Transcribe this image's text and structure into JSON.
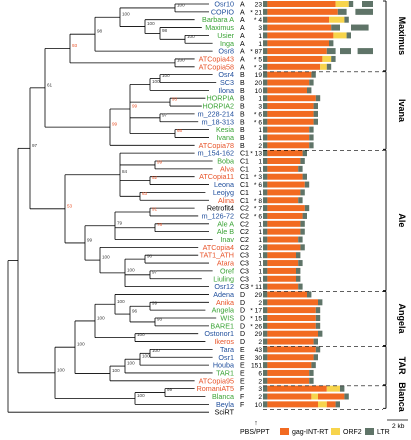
{
  "colors": {
    "red": "#e8542a",
    "blue": "#1f4e9c",
    "green": "#3aa335",
    "black": "#000000",
    "gag": "#f26a21",
    "orf2": "#f7d44c",
    "ltr": "#5f7468"
  },
  "taxa": [
    {
      "name": "Osr10",
      "color": "blue",
      "cls": "A",
      "count": "23"
    },
    {
      "name": "COPIO",
      "color": "blue",
      "cls": "A",
      "count": "* 21"
    },
    {
      "name": "Barbara A",
      "color": "green",
      "cls": "A",
      "count": "* 4"
    },
    {
      "name": "Maximus",
      "color": "green",
      "cls": "A",
      "count": "3"
    },
    {
      "name": "Usier",
      "color": "green",
      "cls": "A",
      "count": "1"
    },
    {
      "name": "Inga",
      "color": "green",
      "cls": "A",
      "count": "1"
    },
    {
      "name": "Osr8",
      "color": "blue",
      "cls": "A",
      "count": "* 87"
    },
    {
      "name": "ATCopia43",
      "color": "red",
      "cls": "A",
      "count": "* 5"
    },
    {
      "name": "ATCopia58",
      "color": "red",
      "cls": "A",
      "count": "* 2"
    },
    {
      "name": "Osr4",
      "color": "blue",
      "cls": "B",
      "count": "19"
    },
    {
      "name": "SC3",
      "color": "blue",
      "cls": "B",
      "count": "20"
    },
    {
      "name": "Ilona",
      "color": "blue",
      "cls": "B",
      "count": "10"
    },
    {
      "name": "HORPIA",
      "color": "green",
      "cls": "B",
      "count": "1"
    },
    {
      "name": "HORPIA2",
      "color": "green",
      "cls": "B",
      "count": "3"
    },
    {
      "name": "m_228-214",
      "color": "blue",
      "cls": "B",
      "count": "* 6"
    },
    {
      "name": "m_18-313",
      "color": "blue",
      "cls": "B",
      "count": "* 6"
    },
    {
      "name": "Kesia",
      "color": "green",
      "cls": "B",
      "count": "1"
    },
    {
      "name": "Ivana",
      "color": "green",
      "cls": "B",
      "count": "1"
    },
    {
      "name": "ATCopia78",
      "color": "red",
      "cls": "B",
      "count": "2"
    },
    {
      "name": "m_154-162",
      "color": "blue",
      "cls": "C1",
      "count": "* 13"
    },
    {
      "name": "Boba",
      "color": "green",
      "cls": "C1",
      "count": "1"
    },
    {
      "name": "Alva",
      "color": "red",
      "cls": "C1",
      "count": "1"
    },
    {
      "name": "ATCopia11",
      "color": "red",
      "cls": "C1",
      "count": "* 3"
    },
    {
      "name": "Leona",
      "color": "blue",
      "cls": "C1",
      "count": "* 6"
    },
    {
      "name": "Leojyg",
      "color": "blue",
      "cls": "C1",
      "count": "1"
    },
    {
      "name": "Alina",
      "color": "red",
      "cls": "C1",
      "count": "* 8"
    },
    {
      "name": "Retrofit4",
      "color": "black",
      "cls": "C2",
      "count": "* 7"
    },
    {
      "name": "m_126-72",
      "color": "blue",
      "cls": "C2",
      "count": "* 6"
    },
    {
      "name": "Ale A",
      "color": "green",
      "cls": "C2",
      "count": "1"
    },
    {
      "name": "Ale B",
      "color": "green",
      "cls": "C2",
      "count": "1"
    },
    {
      "name": "Inav",
      "color": "green",
      "cls": "C2",
      "count": "1"
    },
    {
      "name": "ATCopia4",
      "color": "red",
      "cls": "C2",
      "count": "2"
    },
    {
      "name": "TAT1_ATH",
      "color": "red",
      "cls": "C3",
      "count": "1"
    },
    {
      "name": "Atara",
      "color": "red",
      "cls": "C3",
      "count": "1"
    },
    {
      "name": "Oref",
      "color": "green",
      "cls": "C3",
      "count": "1"
    },
    {
      "name": "Liuling",
      "color": "green",
      "cls": "C3",
      "count": "1"
    },
    {
      "name": "Osr12",
      "color": "blue",
      "cls": "C3",
      "count": "* 11"
    },
    {
      "name": "Adena",
      "color": "blue",
      "cls": "D",
      "count": "29"
    },
    {
      "name": "Anika",
      "color": "red",
      "cls": "D",
      "count": "2"
    },
    {
      "name": "Angela",
      "color": "green",
      "cls": "D",
      "count": "* 17"
    },
    {
      "name": "WIS",
      "color": "green",
      "cls": "D",
      "count": "* 15"
    },
    {
      "name": "BARE1",
      "color": "green",
      "cls": "D",
      "count": "* 26"
    },
    {
      "name": "Ostonor1",
      "color": "blue",
      "cls": "D",
      "count": "29"
    },
    {
      "name": "Ikeros",
      "color": "red",
      "cls": "D",
      "count": "2"
    },
    {
      "name": "Tara",
      "color": "blue",
      "cls": "E",
      "count": "43"
    },
    {
      "name": "Osr1",
      "color": "blue",
      "cls": "E",
      "count": "30"
    },
    {
      "name": "Houba",
      "color": "blue",
      "cls": "E",
      "count": "151"
    },
    {
      "name": "TAR1",
      "color": "green",
      "cls": "E",
      "count": "6"
    },
    {
      "name": "ATCopia95",
      "color": "red",
      "cls": "E",
      "count": "2"
    },
    {
      "name": "RomaniAT5",
      "color": "red",
      "cls": "F",
      "count": "3"
    },
    {
      "name": "Blanca",
      "color": "green",
      "cls": "F",
      "count": "2"
    },
    {
      "name": "Beyla",
      "color": "blue",
      "cls": "F",
      "count": "10"
    },
    {
      "name": "SciRT",
      "color": "black",
      "cls": "",
      "count": ""
    }
  ],
  "bootstrap": [
    {
      "value": "93",
      "red": true
    },
    {
      "value": "100",
      "red": false
    },
    {
      "value": "100",
      "red": false
    },
    {
      "value": "98",
      "red": false
    },
    {
      "value": "100",
      "red": false
    },
    {
      "value": "100",
      "red": false
    },
    {
      "value": "100",
      "red": false
    },
    {
      "value": "98",
      "red": false
    },
    {
      "value": "99",
      "red": true
    },
    {
      "value": "100",
      "red": false
    },
    {
      "value": "99",
      "red": true
    },
    {
      "value": "100",
      "red": false
    },
    {
      "value": "93",
      "red": true
    },
    {
      "value": "97",
      "red": false
    },
    {
      "value": "66",
      "red": true
    },
    {
      "value": "53",
      "red": true
    },
    {
      "value": "99",
      "red": true
    },
    {
      "value": "52",
      "red": true
    },
    {
      "value": "63",
      "red": true
    },
    {
      "value": "84",
      "red": false
    },
    {
      "value": "91",
      "red": true
    },
    {
      "value": "78",
      "red": true
    },
    {
      "value": "79",
      "red": false
    },
    {
      "value": "90",
      "red": false
    },
    {
      "value": "97",
      "red": false
    },
    {
      "value": "100",
      "red": false
    },
    {
      "value": "100",
      "red": false
    },
    {
      "value": "99",
      "red": false
    },
    {
      "value": "61",
      "red": false
    },
    {
      "value": "97",
      "red": false
    },
    {
      "value": "100",
      "red": false
    },
    {
      "value": "99",
      "red": false
    },
    {
      "value": "93",
      "red": false
    },
    {
      "value": "96",
      "red": false
    },
    {
      "value": "100",
      "red": false
    },
    {
      "value": "100",
      "red": false
    },
    {
      "value": "100",
      "red": false
    },
    {
      "value": "100",
      "red": false
    },
    {
      "value": "100",
      "red": false
    },
    {
      "value": "100",
      "red": false
    },
    {
      "value": "100",
      "red": false
    },
    {
      "value": "99",
      "red": false
    },
    {
      "value": "100",
      "red": false
    },
    {
      "value": "100",
      "red": false
    }
  ],
  "groups": [
    "Maximus",
    "Ivana",
    "Ale",
    "Angela",
    "TAR",
    "Blanca"
  ],
  "legend": {
    "gag": "gag-INT-RT",
    "orf2": "ORF2",
    "ltr": "LTR",
    "pbs": "PBS/PPT",
    "scale": "2 kb"
  }
}
